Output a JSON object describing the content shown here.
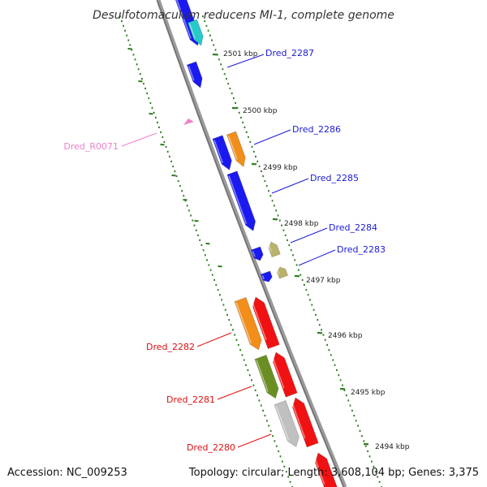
{
  "title": "Desulfotomaculum reducens MI-1, complete genome",
  "footer": {
    "accession": "Accession: NC_009253",
    "summary": "Topology: circular; Length: 3,608,104 bp; Genes: 3,375"
  },
  "colors": {
    "backbone": "#8c8c8c",
    "tick": "#2e7d1f",
    "blue": "#1a1af0",
    "cyan": "#27c9c9",
    "orange": "#f28e1b",
    "khaki": "#b9b26a",
    "red": "#f01212",
    "olive": "#6b8e23",
    "gray": "#c0c0c0",
    "pink": "#ee82c8",
    "label_blue": "#1a1ad6",
    "label_red": "#e01010",
    "label_pink": "#ee82c8"
  },
  "ticks": [
    "2501 kbp",
    "2500 kbp",
    "2499 kbp",
    "2498 kbp",
    "2497 kbp",
    "2496 kbp",
    "2495 kbp",
    "2494 kbp"
  ],
  "genes": [
    {
      "label": "Dred_2287",
      "color": "blue",
      "label_color": "label_blue"
    },
    {
      "label": "Dred_2286",
      "color": "blue",
      "label_color": "label_blue"
    },
    {
      "label": "Dred_2285",
      "color": "blue",
      "label_color": "label_blue"
    },
    {
      "label": "Dred_2284",
      "color": "khaki",
      "label_color": "label_blue"
    },
    {
      "label": "Dred_2283",
      "color": "khaki",
      "label_color": "label_blue"
    },
    {
      "label": "Dred_R0071",
      "color": "pink",
      "label_color": "label_pink"
    },
    {
      "label": "Dred_2282",
      "color": "red",
      "label_color": "label_red"
    },
    {
      "label": "Dred_2281",
      "color": "red",
      "label_color": "label_red"
    },
    {
      "label": "Dred_2280",
      "color": "red",
      "label_color": "label_red"
    }
  ]
}
